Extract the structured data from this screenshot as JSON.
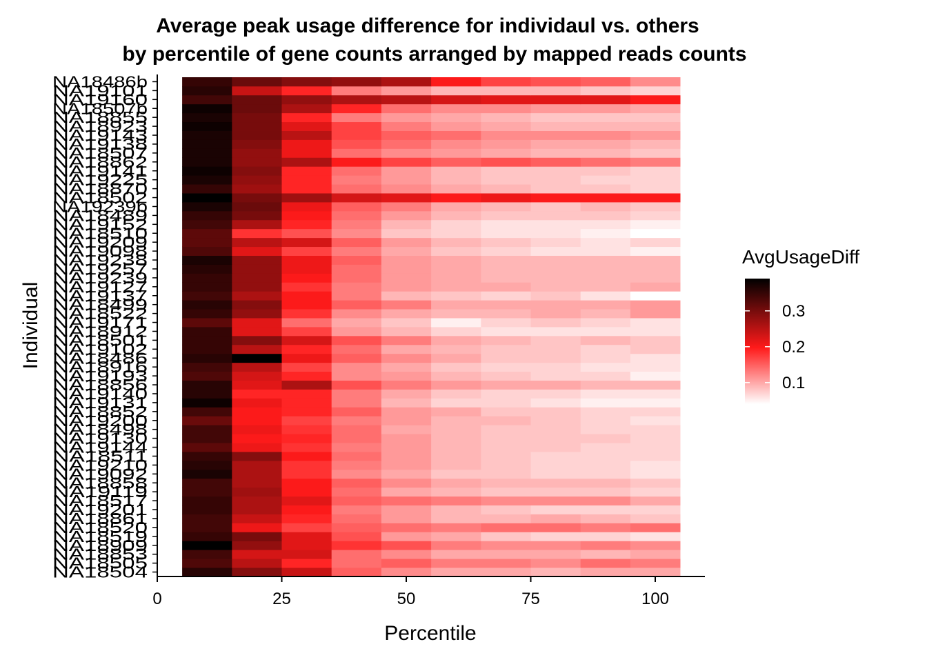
{
  "chart_data": {
    "type": "heatmap",
    "title": "Average peak usage difference for individaul vs. others",
    "subtitle": "by percentile of gene counts arranged by mapped reads counts",
    "xlabel": "Percentile",
    "ylabel": "Individual",
    "xlim": [
      0,
      110
    ],
    "x_ticks": [
      0,
      25,
      50,
      75,
      100
    ],
    "x_tick_labels": [
      "0",
      "25",
      "50",
      "75",
      "100"
    ],
    "x": [
      10,
      20,
      30,
      40,
      50,
      60,
      70,
      80,
      90,
      100
    ],
    "y_labels": [
      "NA18504",
      "NA18505",
      "NA18853",
      "NA18909",
      "NA18519",
      "NA18520",
      "NA18861",
      "NA19201",
      "NA18517",
      "NA19119",
      "NA18858",
      "NA19092",
      "NA19210",
      "NA18511",
      "NA19144",
      "NA19130",
      "NA18498",
      "NA19200",
      "NA18852",
      "NA19131",
      "NA19140",
      "NA18856",
      "NA19193",
      "NA18916",
      "NA18486",
      "NA19102",
      "NA18501",
      "NA18912",
      "NA19171",
      "NA18522",
      "NA18499",
      "NA19137",
      "NA19127",
      "NA19239",
      "NA19257",
      "NA19238",
      "NA19098",
      "NA19209",
      "NA18510",
      "NA19152",
      "NA18489",
      "NA19239b",
      "NA18502",
      "NA18870",
      "NA19225",
      "NA19141",
      "NA18862",
      "NA18507",
      "NA19138",
      "NA19143",
      "NA18923",
      "NA18855",
      "NA18507b",
      "NA19160",
      "NA19101",
      "NA18486b"
    ],
    "color_scale": {
      "title": "AvgUsageDiff",
      "breaks": [
        0.1,
        0.2,
        0.3
      ],
      "break_labels": [
        "0.1",
        "0.2",
        "0.3"
      ],
      "range": [
        0.04,
        0.39
      ],
      "colors": [
        "#ffffff",
        "#ff1a1a",
        "#000000"
      ]
    },
    "values": [
      [
        0.36,
        0.29,
        0.24,
        0.15,
        0.12,
        0.1,
        0.1,
        0.09,
        0.1,
        0.1
      ],
      [
        0.33,
        0.25,
        0.19,
        0.14,
        0.15,
        0.13,
        0.13,
        0.12,
        0.14,
        0.13
      ],
      [
        0.34,
        0.23,
        0.23,
        0.14,
        0.12,
        0.1,
        0.1,
        0.1,
        0.09,
        0.1
      ],
      [
        0.39,
        0.28,
        0.22,
        0.18,
        0.16,
        0.13,
        0.12,
        0.12,
        0.13,
        0.12
      ],
      [
        0.35,
        0.3,
        0.22,
        0.16,
        0.11,
        0.1,
        0.08,
        0.07,
        0.07,
        0.06
      ],
      [
        0.34,
        0.21,
        0.17,
        0.15,
        0.14,
        0.13,
        0.14,
        0.14,
        0.13,
        0.14
      ],
      [
        0.34,
        0.24,
        0.19,
        0.14,
        0.11,
        0.09,
        0.09,
        0.1,
        0.09,
        0.08
      ],
      [
        0.35,
        0.26,
        0.2,
        0.13,
        0.11,
        0.09,
        0.08,
        0.07,
        0.07,
        0.07
      ],
      [
        0.35,
        0.26,
        0.22,
        0.15,
        0.14,
        0.13,
        0.12,
        0.12,
        0.12,
        0.1
      ],
      [
        0.34,
        0.27,
        0.2,
        0.14,
        0.1,
        0.09,
        0.08,
        0.08,
        0.08,
        0.07
      ],
      [
        0.34,
        0.26,
        0.2,
        0.15,
        0.12,
        0.1,
        0.09,
        0.09,
        0.09,
        0.08
      ],
      [
        0.37,
        0.26,
        0.18,
        0.12,
        0.1,
        0.08,
        0.08,
        0.07,
        0.07,
        0.06
      ],
      [
        0.36,
        0.26,
        0.18,
        0.13,
        0.11,
        0.09,
        0.08,
        0.07,
        0.07,
        0.06
      ],
      [
        0.35,
        0.29,
        0.2,
        0.14,
        0.11,
        0.09,
        0.08,
        0.07,
        0.07,
        0.07
      ],
      [
        0.32,
        0.21,
        0.18,
        0.13,
        0.11,
        0.09,
        0.08,
        0.08,
        0.07,
        0.07
      ],
      [
        0.34,
        0.2,
        0.19,
        0.14,
        0.11,
        0.09,
        0.08,
        0.08,
        0.08,
        0.07
      ],
      [
        0.34,
        0.21,
        0.18,
        0.14,
        0.1,
        0.09,
        0.08,
        0.08,
        0.07,
        0.07
      ],
      [
        0.31,
        0.2,
        0.17,
        0.13,
        0.11,
        0.09,
        0.09,
        0.08,
        0.07,
        0.06
      ],
      [
        0.34,
        0.2,
        0.19,
        0.15,
        0.11,
        0.1,
        0.08,
        0.08,
        0.07,
        0.07
      ],
      [
        0.38,
        0.21,
        0.19,
        0.13,
        0.09,
        0.07,
        0.07,
        0.06,
        0.05,
        0.05
      ],
      [
        0.36,
        0.19,
        0.19,
        0.13,
        0.1,
        0.08,
        0.07,
        0.07,
        0.06,
        0.06
      ],
      [
        0.36,
        0.22,
        0.26,
        0.16,
        0.13,
        0.11,
        0.1,
        0.1,
        0.09,
        0.09
      ],
      [
        0.33,
        0.23,
        0.19,
        0.12,
        0.11,
        0.09,
        0.08,
        0.07,
        0.07,
        0.05
      ],
      [
        0.34,
        0.25,
        0.17,
        0.12,
        0.1,
        0.08,
        0.07,
        0.07,
        0.06,
        0.06
      ],
      [
        0.36,
        0.39,
        0.21,
        0.15,
        0.12,
        0.1,
        0.08,
        0.08,
        0.07,
        0.06
      ],
      [
        0.35,
        0.25,
        0.19,
        0.14,
        0.1,
        0.09,
        0.08,
        0.08,
        0.07,
        0.08
      ],
      [
        0.35,
        0.29,
        0.23,
        0.16,
        0.13,
        0.1,
        0.09,
        0.08,
        0.09,
        0.08
      ],
      [
        0.35,
        0.22,
        0.17,
        0.11,
        0.09,
        0.07,
        0.06,
        0.06,
        0.06,
        0.06
      ],
      [
        0.32,
        0.22,
        0.14,
        0.1,
        0.08,
        0.05,
        0.07,
        0.08,
        0.07,
        0.06
      ],
      [
        0.35,
        0.28,
        0.18,
        0.12,
        0.1,
        0.09,
        0.09,
        0.1,
        0.09,
        0.11
      ],
      [
        0.36,
        0.29,
        0.2,
        0.15,
        0.13,
        0.1,
        0.1,
        0.1,
        0.1,
        0.11
      ],
      [
        0.34,
        0.26,
        0.2,
        0.13,
        0.09,
        0.08,
        0.07,
        0.08,
        0.06,
        0.04
      ],
      [
        0.35,
        0.28,
        0.18,
        0.13,
        0.11,
        0.1,
        0.1,
        0.09,
        0.09,
        0.1
      ],
      [
        0.35,
        0.28,
        0.2,
        0.14,
        0.11,
        0.1,
        0.09,
        0.09,
        0.09,
        0.09
      ],
      [
        0.36,
        0.28,
        0.21,
        0.14,
        0.11,
        0.1,
        0.09,
        0.09,
        0.09,
        0.09
      ],
      [
        0.37,
        0.28,
        0.21,
        0.15,
        0.11,
        0.1,
        0.09,
        0.09,
        0.09,
        0.09
      ],
      [
        0.33,
        0.22,
        0.17,
        0.13,
        0.1,
        0.08,
        0.07,
        0.06,
        0.06,
        0.05
      ],
      [
        0.32,
        0.25,
        0.23,
        0.15,
        0.11,
        0.09,
        0.08,
        0.07,
        0.06,
        0.07
      ],
      [
        0.32,
        0.18,
        0.16,
        0.12,
        0.08,
        0.07,
        0.06,
        0.06,
        0.05,
        0.04
      ],
      [
        0.34,
        0.26,
        0.19,
        0.13,
        0.09,
        0.07,
        0.06,
        0.06,
        0.06,
        0.05
      ],
      [
        0.35,
        0.3,
        0.2,
        0.14,
        0.11,
        0.09,
        0.08,
        0.08,
        0.08,
        0.07
      ],
      [
        0.37,
        0.31,
        0.21,
        0.15,
        0.13,
        0.1,
        0.09,
        0.08,
        0.09,
        0.08
      ],
      [
        0.39,
        0.3,
        0.27,
        0.23,
        0.22,
        0.2,
        0.21,
        0.2,
        0.2,
        0.2
      ],
      [
        0.35,
        0.27,
        0.19,
        0.14,
        0.12,
        0.1,
        0.09,
        0.08,
        0.08,
        0.07
      ],
      [
        0.37,
        0.28,
        0.19,
        0.13,
        0.11,
        0.09,
        0.08,
        0.08,
        0.07,
        0.07
      ],
      [
        0.38,
        0.29,
        0.19,
        0.14,
        0.11,
        0.09,
        0.08,
        0.08,
        0.08,
        0.07
      ],
      [
        0.37,
        0.28,
        0.26,
        0.2,
        0.17,
        0.15,
        0.16,
        0.15,
        0.14,
        0.13
      ],
      [
        0.37,
        0.28,
        0.21,
        0.14,
        0.12,
        0.11,
        0.1,
        0.09,
        0.09,
        0.08
      ],
      [
        0.37,
        0.29,
        0.21,
        0.16,
        0.14,
        0.12,
        0.11,
        0.1,
        0.1,
        0.09
      ],
      [
        0.37,
        0.3,
        0.25,
        0.17,
        0.15,
        0.14,
        0.12,
        0.12,
        0.12,
        0.11
      ],
      [
        0.38,
        0.3,
        0.22,
        0.17,
        0.13,
        0.11,
        0.1,
        0.09,
        0.09,
        0.09
      ],
      [
        0.37,
        0.3,
        0.19,
        0.13,
        0.11,
        0.1,
        0.09,
        0.08,
        0.08,
        0.08
      ],
      [
        0.38,
        0.31,
        0.26,
        0.19,
        0.14,
        0.12,
        0.12,
        0.11,
        0.11,
        0.1
      ],
      [
        0.34,
        0.31,
        0.28,
        0.26,
        0.25,
        0.23,
        0.22,
        0.22,
        0.22,
        0.2
      ],
      [
        0.36,
        0.24,
        0.19,
        0.13,
        0.11,
        0.09,
        0.09,
        0.09,
        0.08,
        0.07
      ],
      [
        0.35,
        0.31,
        0.29,
        0.28,
        0.26,
        0.2,
        0.17,
        0.16,
        0.15,
        0.12
      ]
    ]
  }
}
